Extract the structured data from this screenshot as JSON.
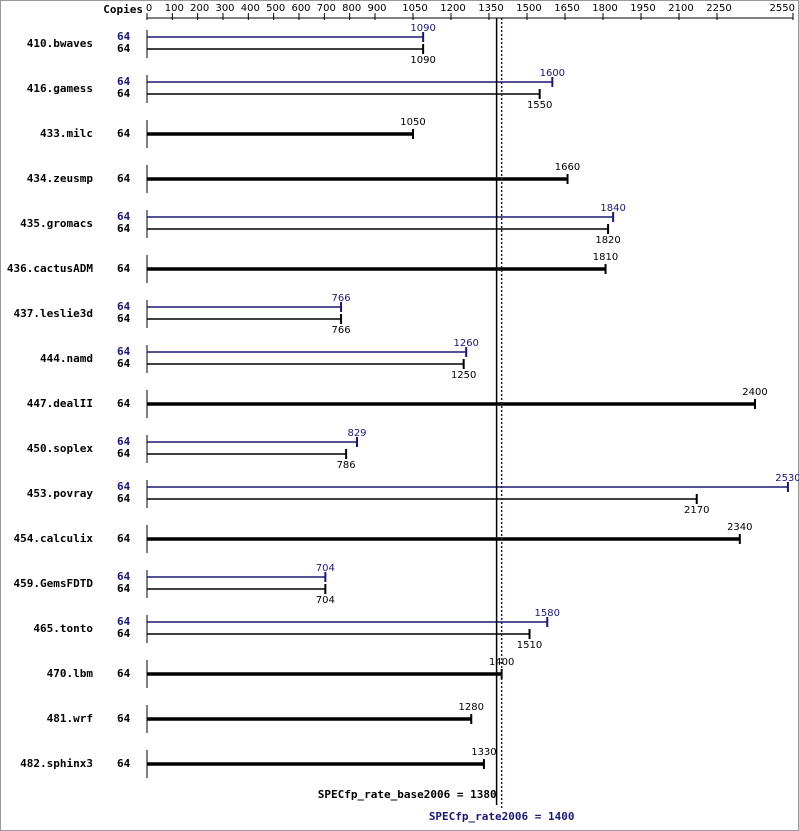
{
  "chart_data": {
    "type": "bar",
    "orientation": "horizontal",
    "copies_label": "Copies",
    "categories": [
      "410.bwaves",
      "416.gamess",
      "433.milc",
      "434.zeusmp",
      "435.gromacs",
      "436.cactusADM",
      "437.leslie3d",
      "444.namd",
      "447.dealII",
      "450.soplex",
      "453.povray",
      "454.calculix",
      "459.GemsFDTD",
      "465.tonto",
      "470.lbm",
      "481.wrf",
      "482.sphinx3"
    ],
    "xlim": [
      0,
      2550
    ],
    "xticks": [
      0,
      100,
      200,
      300,
      400,
      500,
      600,
      700,
      800,
      900,
      1050,
      1200,
      1350,
      1500,
      1650,
      1800,
      1950,
      2100,
      2250,
      2550
    ],
    "series": [
      {
        "color": "#000000",
        "copies": [
          64,
          64,
          64,
          64,
          64,
          64,
          64,
          64,
          64,
          64,
          64,
          64,
          64,
          64,
          64,
          64,
          64
        ],
        "values": [
          1090,
          1550,
          1050,
          1660,
          1820,
          1810,
          766,
          1250,
          2400,
          786,
          2170,
          2340,
          704,
          1510,
          1400,
          1280,
          1330
        ]
      },
      {
        "color": "#191970",
        "copies": [
          64,
          64,
          null,
          null,
          64,
          null,
          64,
          64,
          null,
          64,
          64,
          null,
          64,
          64,
          null,
          null,
          null
        ],
        "values": [
          1090,
          1600,
          null,
          null,
          1840,
          null,
          766,
          1260,
          null,
          829,
          2530,
          null,
          704,
          1580,
          null,
          null,
          null
        ]
      }
    ],
    "reference_lines": [
      {
        "label": "SPECfp_rate_base2006 = 1380",
        "value": 1380,
        "color": "#000000"
      },
      {
        "label": "SPECfp_rate2006 = 1400",
        "value": 1400,
        "color": "#191970"
      }
    ]
  }
}
